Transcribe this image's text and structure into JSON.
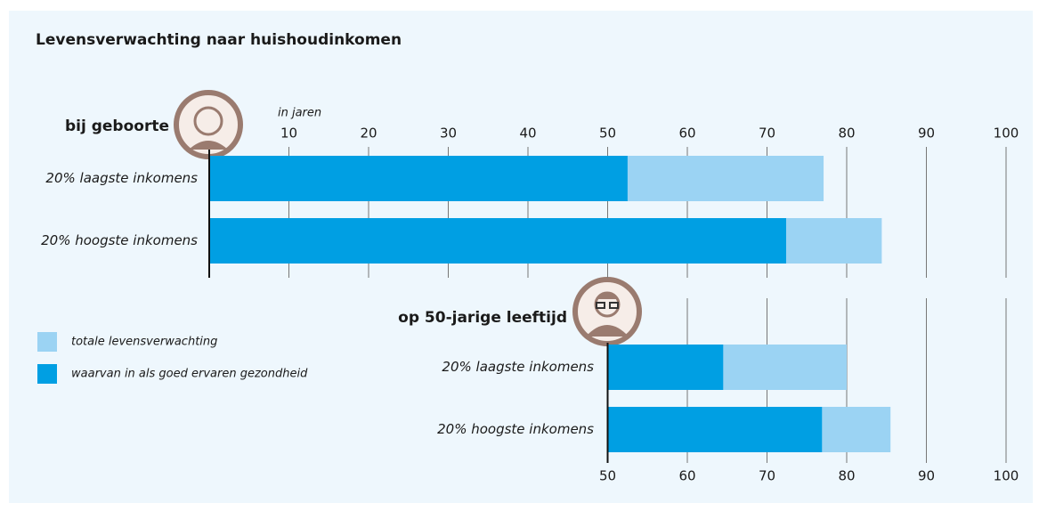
{
  "title": "Levensverwachting naar huishoudinkomen",
  "chart_data": [
    {
      "type": "bar",
      "title": "bij geboorte",
      "x_label": "in jaren",
      "categories": [
        "20% laagste inkomens",
        "20% hoogste inkomens"
      ],
      "series": [
        {
          "name": "totale levensverwachting",
          "color": "#9bd3f3",
          "values": [
            77.1,
            84.4
          ]
        },
        {
          "name": "waarvan in als goed ervaren gezondheid",
          "color": "#009fe3",
          "values": [
            52.5,
            72.4
          ]
        }
      ],
      "xlim": [
        0,
        100
      ],
      "xticks": [
        10,
        20,
        30,
        40,
        50,
        60,
        70,
        80,
        90,
        100
      ],
      "grid": true
    },
    {
      "type": "bar",
      "title": "op 50-jarige leeftijd",
      "categories": [
        "20% laagste inkomens",
        "20% hoogste inkomens"
      ],
      "series": [
        {
          "color": "#9bd3f3",
          "values": [
            80.0,
            85.5
          ]
        },
        {
          "color": "#009fe3",
          "values": [
            64.5,
            76.9
          ]
        }
      ],
      "xlim": [
        50,
        100
      ],
      "xticks": [
        50,
        60,
        70,
        80,
        90,
        100
      ],
      "grid": true
    }
  ]
}
